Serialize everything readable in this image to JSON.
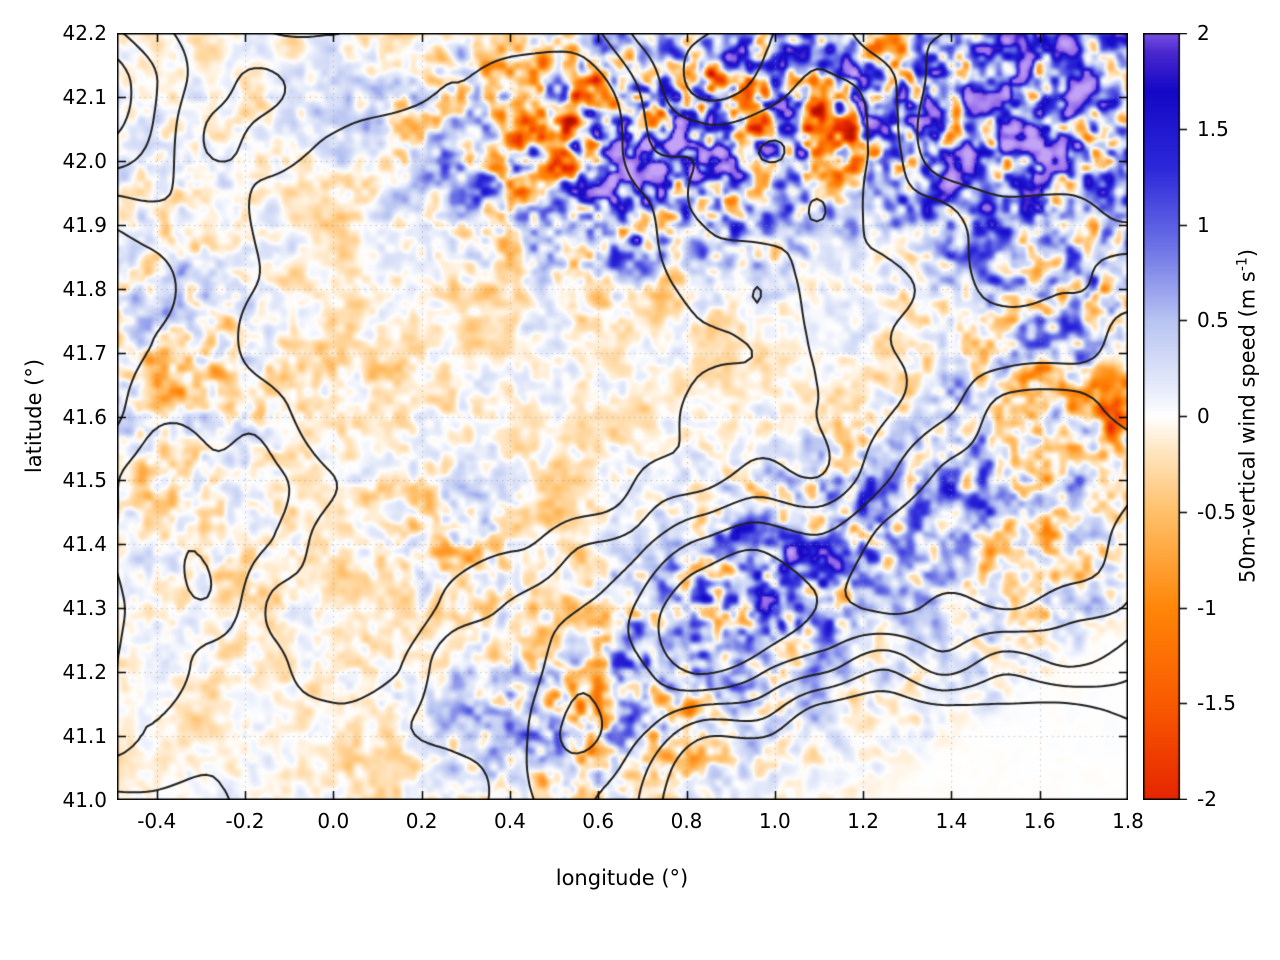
{
  "chart_data": {
    "type": "heatmap",
    "title": "",
    "x": {
      "label": "longitude (°)",
      "min": -0.49,
      "max": 1.8,
      "tick_values": [
        -0.4,
        -0.2,
        0.0,
        0.2,
        0.4,
        0.6,
        0.8,
        1.0,
        1.2,
        1.4,
        1.6,
        1.8
      ],
      "tick_labels": [
        "-0.4",
        "-0.2",
        "0.0",
        "0.2",
        "0.4",
        "0.6",
        "0.8",
        "1.0",
        "1.2",
        "1.4",
        "1.6",
        "1.8"
      ]
    },
    "y": {
      "label": "latitude (°)",
      "min": 41.0,
      "max": 42.2,
      "tick_values": [
        41.0,
        41.1,
        41.2,
        41.3,
        41.4,
        41.5,
        41.6,
        41.7,
        41.8,
        41.9,
        42.0,
        42.1,
        42.2
      ],
      "tick_labels": [
        "41.0",
        "41.1",
        "41.2",
        "41.3",
        "41.4",
        "41.5",
        "41.6",
        "41.7",
        "41.8",
        "41.9",
        "42.0",
        "42.1",
        "42.2"
      ]
    },
    "colorbar": {
      "label_main": "50m-vertical wind speed (m s",
      "label_sup": "-1",
      "label_close": ")",
      "min": -2,
      "max": 2,
      "tick_values": [
        -2,
        -1.5,
        -1,
        -0.5,
        0,
        0.5,
        1,
        1.5,
        2
      ],
      "tick_labels": [
        "-2",
        "-1.5",
        "-1",
        "-0.5",
        "0",
        "0.5",
        "1",
        "1.5",
        "2"
      ],
      "stops": [
        [
          -2.7,
          "#b01000"
        ],
        [
          -2.0,
          "#e62500"
        ],
        [
          -1.5,
          "#f95a00"
        ],
        [
          -1.0,
          "#ff8608"
        ],
        [
          -0.5,
          "#ffc06a"
        ],
        [
          -0.18,
          "#ffe6c2"
        ],
        [
          0.0,
          "#ffffff"
        ],
        [
          0.18,
          "#e2e8fa"
        ],
        [
          0.5,
          "#b8c4f2"
        ],
        [
          0.9,
          "#6a70e6"
        ],
        [
          1.3,
          "#2c28da"
        ],
        [
          1.7,
          "#1408c6"
        ],
        [
          1.9,
          "#4a28cf"
        ],
        [
          2.05,
          "#8e64e8"
        ],
        [
          2.9,
          "#c2a2f6"
        ]
      ]
    },
    "grid": {
      "show": true,
      "color": "rgba(150,150,150,0.5)"
    },
    "field_model": {
      "description": "Turbulent vertical wind speed over NE Spain; strong up/downdraft bands (blue/purple up, orange/red down) along Pyrenean foothills in the north, a SW-NE convective band in the southeast, mixed turbulence near the eastern edge, weak speckle over the central/western plain, calm flat corner in the far southeast.",
      "base_amp": 0.22,
      "base_bias": -0.05,
      "octave_format": [
        "freq_lon",
        "freq_lat",
        "shear",
        "weight",
        "seed"
      ],
      "octaves": [
        [
          5.5,
          8,
          0,
          0.3,
          20
        ],
        [
          16,
          23,
          0.5,
          0.45,
          21
        ],
        [
          31,
          46,
          -0.4,
          0.4,
          22
        ],
        [
          55,
          80,
          0,
          0.3,
          23
        ]
      ],
      "blob_format": [
        "lon",
        "lat",
        "sigma_lon",
        "sigma_lat",
        "amp",
        "bias"
      ],
      "blobs": [
        [
          0.85,
          42.08,
          0.45,
          0.12,
          1.5,
          0.3
        ],
        [
          1.3,
          42.12,
          0.3,
          0.1,
          1.2,
          0.4
        ],
        [
          0.55,
          42.0,
          0.2,
          0.1,
          1.0,
          0.2
        ],
        [
          0.7,
          41.93,
          0.22,
          0.09,
          0.9,
          0.3
        ],
        [
          0.8,
          42.07,
          0.3,
          0.06,
          0.5,
          -0.6
        ],
        [
          1.15,
          42.05,
          0.12,
          0.05,
          0.4,
          -0.5
        ],
        [
          0.78,
          42.02,
          0.1,
          0.035,
          0.4,
          1.1
        ],
        [
          0.95,
          42.17,
          0.13,
          0.05,
          0.3,
          1.0
        ],
        [
          1.65,
          42.17,
          0.12,
          0.05,
          0.3,
          0.9
        ],
        [
          1.62,
          42.05,
          0.25,
          0.12,
          1.0,
          0.3
        ],
        [
          1.62,
          41.55,
          0.2,
          0.28,
          0.9,
          0.15
        ],
        [
          1.68,
          41.9,
          0.18,
          0.18,
          0.8,
          0.2
        ],
        [
          1.77,
          41.6,
          0.05,
          0.04,
          0.4,
          -0.8
        ],
        [
          0.73,
          41.13,
          0.18,
          0.08,
          1.1,
          0.4
        ],
        [
          0.95,
          41.3,
          0.2,
          0.1,
          1.2,
          0.45
        ],
        [
          1.2,
          41.45,
          0.18,
          0.1,
          1.0,
          0.4
        ],
        [
          1.02,
          41.36,
          0.1,
          0.04,
          0.3,
          0.9
        ],
        [
          0.85,
          41.32,
          0.12,
          0.05,
          0.5,
          -0.45
        ],
        [
          -0.38,
          41.7,
          0.15,
          0.25,
          0.55,
          0.15
        ],
        [
          -0.2,
          41.67,
          0.2,
          0.035,
          0.3,
          -0.5
        ],
        [
          0.27,
          41.42,
          0.09,
          0.06,
          0.6,
          0.25
        ],
        [
          0.45,
          41.1,
          0.16,
          0.1,
          0.8,
          0.2
        ],
        [
          0.35,
          41.55,
          0.5,
          0.3,
          0.15,
          -0.06
        ],
        [
          0.1,
          41.3,
          0.4,
          0.25,
          0.12,
          -0.05
        ]
      ],
      "flat_corner": {
        "lon0": 1.13,
        "lat0": 41.0,
        "slope": 0.48,
        "soft": 0.05
      }
    },
    "contours": {
      "description": "Black terrain-elevation contour lines overlaid on the heatmap",
      "color": "#202020",
      "levels": [
        -0.12,
        0.1,
        0.32,
        0.54,
        0.76
      ],
      "octave_format": [
        "freq_lon",
        "freq_lat",
        "weight",
        "seed"
      ],
      "octaves": [
        [
          1.7,
          2.3,
          0.5,
          11
        ],
        [
          3.6,
          4.8,
          0.28,
          12
        ],
        [
          7.2,
          9.9,
          0.16,
          13
        ]
      ],
      "relief_blob_format": [
        "lon",
        "lat",
        "sigma_lon",
        "sigma_lat",
        "height"
      ],
      "relief_blobs": [
        [
          0.8,
          42.18,
          0.5,
          0.18,
          0.75
        ],
        [
          1.55,
          42.1,
          0.3,
          0.15,
          0.6
        ],
        [
          0.95,
          41.28,
          0.3,
          0.12,
          0.8
        ],
        [
          1.5,
          41.5,
          0.25,
          0.2,
          0.55
        ],
        [
          1.75,
          41.78,
          0.2,
          0.3,
          0.45
        ],
        [
          -0.25,
          41.5,
          0.25,
          0.4,
          0.45
        ],
        [
          0.1,
          41.15,
          0.3,
          0.15,
          0.3
        ],
        [
          0.5,
          41.65,
          0.35,
          0.25,
          -0.55
        ],
        [
          1.3,
          41.03,
          0.4,
          0.15,
          -0.85
        ],
        [
          0.3,
          42.0,
          0.25,
          0.15,
          -0.3
        ],
        [
          1.05,
          41.75,
          0.3,
          0.2,
          -0.45
        ]
      ]
    }
  }
}
